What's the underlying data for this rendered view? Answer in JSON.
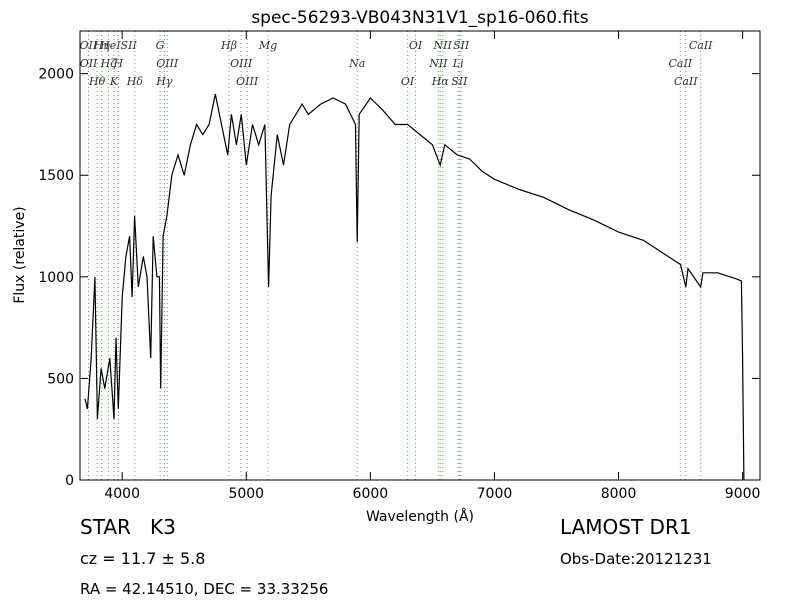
{
  "chart_data": {
    "type": "line",
    "title": "spec-56293-VB043N31V1_sp16-060.fits",
    "x_label": "Wavelength (Å)",
    "y_label": "Flux (relative)",
    "x": [
      3700,
      3720,
      3750,
      3780,
      3800,
      3830,
      3860,
      3900,
      3934,
      3950,
      3969,
      4000,
      4030,
      4060,
      4080,
      4100,
      4130,
      4170,
      4200,
      4230,
      4250,
      4280,
      4300,
      4310,
      4330,
      4360,
      4400,
      4450,
      4500,
      4550,
      4600,
      4650,
      4700,
      4750,
      4800,
      4850,
      4880,
      4920,
      4960,
      5000,
      5050,
      5100,
      5150,
      5170,
      5180,
      5200,
      5250,
      5300,
      5350,
      5400,
      5450,
      5500,
      5600,
      5700,
      5800,
      5880,
      5894,
      5910,
      6000,
      6100,
      6200,
      6300,
      6400,
      6500,
      6563,
      6600,
      6700,
      6800,
      6900,
      7000,
      7200,
      7400,
      7600,
      7800,
      8000,
      8200,
      8400,
      8500,
      8542,
      8560,
      8662,
      8680,
      8800,
      8950,
      8990,
      9000,
      9010
    ],
    "series": [
      {
        "name": "flux",
        "color": "#000000",
        "values": [
          400,
          350,
          600,
          1000,
          300,
          550,
          450,
          600,
          300,
          700,
          350,
          900,
          1100,
          1200,
          900,
          1300,
          950,
          1100,
          1000,
          600,
          1200,
          1000,
          1000,
          450,
          1200,
          1300,
          1500,
          1600,
          1500,
          1650,
          1750,
          1700,
          1750,
          1900,
          1750,
          1600,
          1800,
          1650,
          1800,
          1550,
          1750,
          1650,
          1750,
          1200,
          950,
          1400,
          1700,
          1550,
          1750,
          1800,
          1850,
          1800,
          1850,
          1880,
          1850,
          1750,
          1170,
          1800,
          1880,
          1820,
          1750,
          1750,
          1700,
          1650,
          1550,
          1650,
          1600,
          1580,
          1520,
          1480,
          1430,
          1390,
          1330,
          1280,
          1220,
          1180,
          1100,
          1060,
          950,
          1040,
          950,
          1020,
          1020,
          990,
          980,
          600,
          0
        ]
      }
    ],
    "xlim": [
      3660,
      9140
    ],
    "ylim": [
      0,
      2210
    ],
    "xticks": [
      4000,
      5000,
      6000,
      7000,
      8000,
      9000
    ],
    "yticks": [
      0,
      500,
      1000,
      1500,
      2000
    ],
    "line_color": "#4cad4c",
    "lines": [
      {
        "wavelength": 3727,
        "label": "OII"
      },
      {
        "wavelength": 3729,
        "label": "OII"
      },
      {
        "wavelength": 3798,
        "label": "Hθ"
      },
      {
        "wavelength": 3835,
        "label": "Hη"
      },
      {
        "wavelength": 3889,
        "label": "Hζ"
      },
      {
        "wavelength": 3934,
        "label": "K"
      },
      {
        "wavelength": 3970,
        "label": "HeISII"
      },
      {
        "wavelength": 3969,
        "label": "H"
      },
      {
        "wavelength": 4102,
        "label": "Hδ"
      },
      {
        "wavelength": 4305,
        "label": "G"
      },
      {
        "wavelength": 4363,
        "label": "OIII"
      },
      {
        "wavelength": 4340,
        "label": "Hγ"
      },
      {
        "wavelength": 4861,
        "label": "Hβ"
      },
      {
        "wavelength": 4959,
        "label": "OIII"
      },
      {
        "wavelength": 5007,
        "label": "OIII"
      },
      {
        "wavelength": 5175,
        "label": "Mg"
      },
      {
        "wavelength": 5894,
        "label": "Na"
      },
      {
        "wavelength": 6300,
        "label": "OI"
      },
      {
        "wavelength": 6364,
        "label": "OI"
      },
      {
        "wavelength": 6548,
        "label": "NII"
      },
      {
        "wavelength": 6563,
        "label": "Hα"
      },
      {
        "wavelength": 6583,
        "label": "NII"
      },
      {
        "wavelength": 6708,
        "label": "Li"
      },
      {
        "wavelength": 6717,
        "label": "SII"
      },
      {
        "wavelength": 6731,
        "label": "SII"
      },
      {
        "wavelength": 8498,
        "label": "CaII"
      },
      {
        "wavelength": 8542,
        "label": "CaII"
      },
      {
        "wavelength": 8662,
        "label": "CaII"
      }
    ],
    "annotations": {
      "object": "STAR   K3",
      "cz": "cz = 11.7 ± 5.8",
      "coords": "RA = 42.14510, DEC = 33.33256",
      "survey": "LAMOST DR1",
      "date": "Obs-Date:20121231"
    }
  }
}
